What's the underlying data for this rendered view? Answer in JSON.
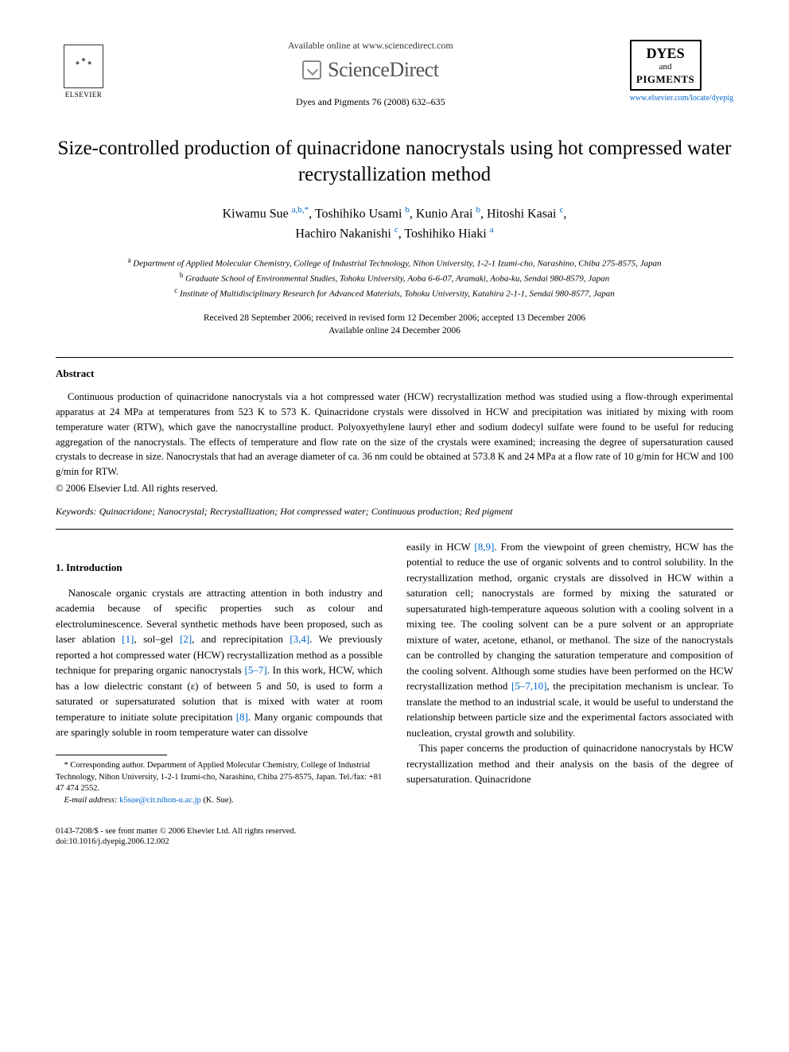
{
  "header": {
    "elsevier_label": "ELSEVIER",
    "available_text": "Available online at www.sciencedirect.com",
    "sciencedirect_label": "ScienceDirect",
    "journal_ref": "Dyes and Pigments 76 (2008) 632–635",
    "journal_logo_top": "DYES",
    "journal_logo_mid": "and",
    "journal_logo_bot": "PIGMENTS",
    "journal_link": "www.elsevier.com/locate/dyepig"
  },
  "title": "Size-controlled production of quinacridone nanocrystals using hot compressed water recrystallization method",
  "authors_line1": "Kiwamu Sue ",
  "authors_sup1": "a,b,*",
  "authors_line1b": ", Toshihiko Usami ",
  "authors_sup2": "b",
  "authors_line1c": ", Kunio Arai ",
  "authors_sup3": "b",
  "authors_line1d": ", Hitoshi Kasai ",
  "authors_sup4": "c",
  "authors_line1e": ",",
  "authors_line2a": "Hachiro Nakanishi ",
  "authors_sup5": "c",
  "authors_line2b": ", Toshihiko Hiaki ",
  "authors_sup6": "a",
  "affiliations": {
    "a": "Department of Applied Molecular Chemistry, College of Industrial Technology, Nihon University, 1-2-1 Izumi-cho, Narashino, Chiba 275-8575, Japan",
    "b": "Graduate School of Environmental Studies, Tohoku University, Aoba 6-6-07, Aramaki, Aoba-ku, Sendai 980-8579, Japan",
    "c": "Institute of Multidisciplinary Research for Advanced Materials, Tohoku University, Katahira 2-1-1, Sendai 980-8577, Japan"
  },
  "dates_line1": "Received 28 September 2006; received in revised form 12 December 2006; accepted 13 December 2006",
  "dates_line2": "Available online 24 December 2006",
  "abstract": {
    "heading": "Abstract",
    "body": "Continuous production of quinacridone nanocrystals via a hot compressed water (HCW) recrystallization method was studied using a flow-through experimental apparatus at 24 MPa at temperatures from 523 K to 573 K. Quinacridone crystals were dissolved in HCW and precipitation was initiated by mixing with room temperature water (RTW), which gave the nanocrystalline product. Polyoxyethylene lauryl ether and sodium dodecyl sulfate were found to be useful for reducing aggregation of the nanocrystals. The effects of temperature and flow rate on the size of the crystals were examined; increasing the degree of supersaturation caused crystals to decrease in size. Nanocrystals that had an average diameter of ca. 36 nm could be obtained at 573.8 K and 24 MPa at a flow rate of 10 g/min for HCW and 100 g/min for RTW.",
    "copyright": "© 2006 Elsevier Ltd. All rights reserved."
  },
  "keywords_label": "Keywords:",
  "keywords_text": " Quinacridone; Nanocrystal; Recrystallization; Hot compressed water; Continuous production; Red pigment",
  "section1_heading": "1. Introduction",
  "col1_p1a": "Nanoscale organic crystals are attracting attention in both industry and academia because of specific properties such as colour and electroluminescence. Several synthetic methods have been proposed, such as laser ablation ",
  "col1_ref1": "[1]",
  "col1_p1b": ", sol–gel ",
  "col1_ref2": "[2]",
  "col1_p1c": ", and reprecipitation ",
  "col1_ref3": "[3,4]",
  "col1_p1d": ". We previously reported a hot compressed water (HCW) recrystallization method as a possible technique for preparing organic nanocrystals ",
  "col1_ref4": "[5–7]",
  "col1_p1e": ". In this work, HCW, which has a low dielectric constant (ε) of between 5 and 50, is used to form a saturated or supersaturated solution that is mixed with water at room temperature to initiate solute precipitation ",
  "col1_ref5": "[8]",
  "col1_p1f": ". Many organic compounds that are sparingly soluble in room temperature water can dissolve",
  "col2_p1a": "easily in HCW ",
  "col2_ref1": "[8,9]",
  "col2_p1b": ". From the viewpoint of green chemistry, HCW has the potential to reduce the use of organic solvents and to control solubility. In the recrystallization method, organic crystals are dissolved in HCW within a saturation cell; nanocrystals are formed by mixing the saturated or supersaturated high-temperature aqueous solution with a cooling solvent in a mixing tee. The cooling solvent can be a pure solvent or an appropriate mixture of water, acetone, ethanol, or methanol. The size of the nanocrystals can be controlled by changing the saturation temperature and composition of the cooling solvent. Although some studies have been performed on the HCW recrystallization method ",
  "col2_ref2": "[5–7,10]",
  "col2_p1c": ", the precipitation mechanism is unclear. To translate the method to an industrial scale, it would be useful to understand the relationship between particle size and the experimental factors associated with nucleation, crystal growth and solubility.",
  "col2_p2": "This paper concerns the production of quinacridone nanocrystals by HCW recrystallization method and their analysis on the basis of the degree of supersaturation. Quinacridone",
  "footnote": {
    "corresp": "* Corresponding author. Department of Applied Molecular Chemistry, College of Industrial Technology, Nihon University, 1-2-1 Izumi-cho, Narashino, Chiba 275-8575, Japan. Tel./fax: +81 47 474 2552.",
    "email_label": "E-mail address:",
    "email": "k5sue@cit.nihon-u.ac.jp",
    "email_after": " (K. Sue)."
  },
  "footer": {
    "line1": "0143-7208/$ - see front matter © 2006 Elsevier Ltd. All rights reserved.",
    "line2": "doi:10.1016/j.dyepig.2006.12.002"
  }
}
